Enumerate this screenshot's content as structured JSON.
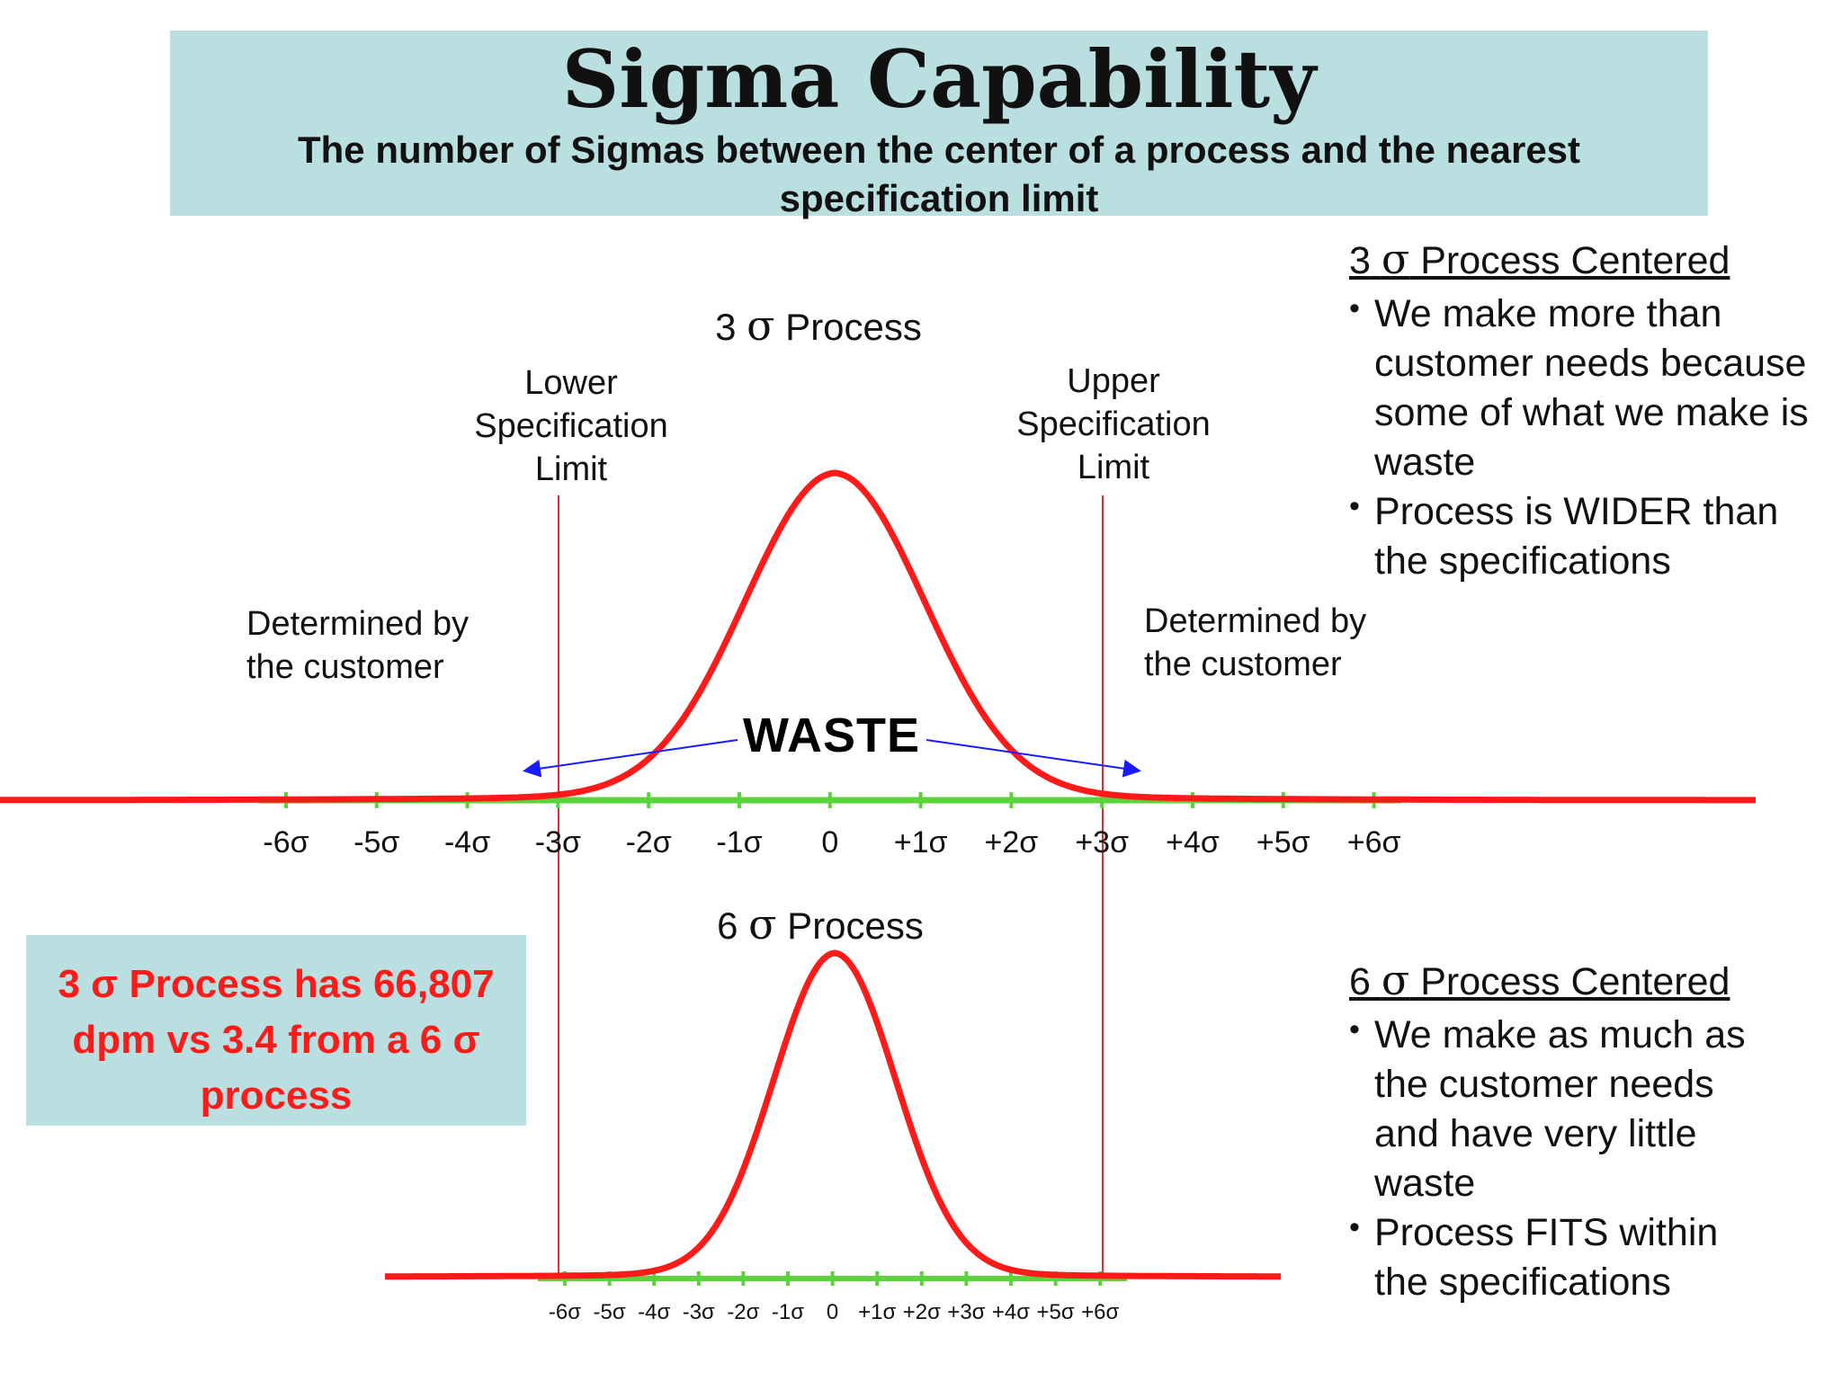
{
  "title": "Sigma Capability",
  "subtitle": "The number of Sigmas between the center of a process and the nearest specification limit",
  "top_chart": {
    "title_num": "3",
    "title_sigma": "σ",
    "title_rest": " Process",
    "lower_limit_label": "Lower\nSpecification\nLimit",
    "upper_limit_label": "Upper\nSpecification\nLimit",
    "left_note": "Determined by\nthe customer",
    "right_note": "Determined by\nthe customer",
    "waste_label": "WASTE",
    "ticks": [
      "-6σ",
      "-5σ",
      "-4σ",
      "-3σ",
      "-2σ",
      "-1σ",
      "0",
      "+1σ",
      "+2σ",
      "+3σ",
      "+4σ",
      "+5σ",
      "+6σ"
    ]
  },
  "bottom_chart": {
    "title_num": "6",
    "title_sigma": "σ",
    "title_rest": " Process",
    "ticks": [
      "-6σ",
      "-5σ",
      "-4σ",
      "-3σ",
      "-2σ",
      "-1σ",
      "0",
      "+1σ",
      "+2σ",
      "+3σ",
      "+4σ",
      "+5σ",
      "+6σ"
    ]
  },
  "top_panel": {
    "head_num": "3",
    "head_sigma": "σ",
    "head_rest": " Process Centered",
    "bullets": [
      "We make more than customer needs because some of what we make is waste",
      "Process is WIDER than the specifications"
    ]
  },
  "bottom_panel": {
    "head_num": "6",
    "head_sigma": "σ",
    "head_rest": " Process Centered",
    "bullets": [
      "We make as much as the customer needs and have very little waste",
      "Process FITS within the specifications"
    ]
  },
  "dpm_box": {
    "line1": "3 σ  Process has 66,807",
    "line2": "dpm vs 3.4 from a 6 σ",
    "line3": "process"
  },
  "colors": {
    "curve": "#ff1a1a",
    "axis": "#5ad43a",
    "spec_line": "#e03030",
    "arrow": "#1a1aff",
    "box_fill": "#b9dfe1"
  }
}
